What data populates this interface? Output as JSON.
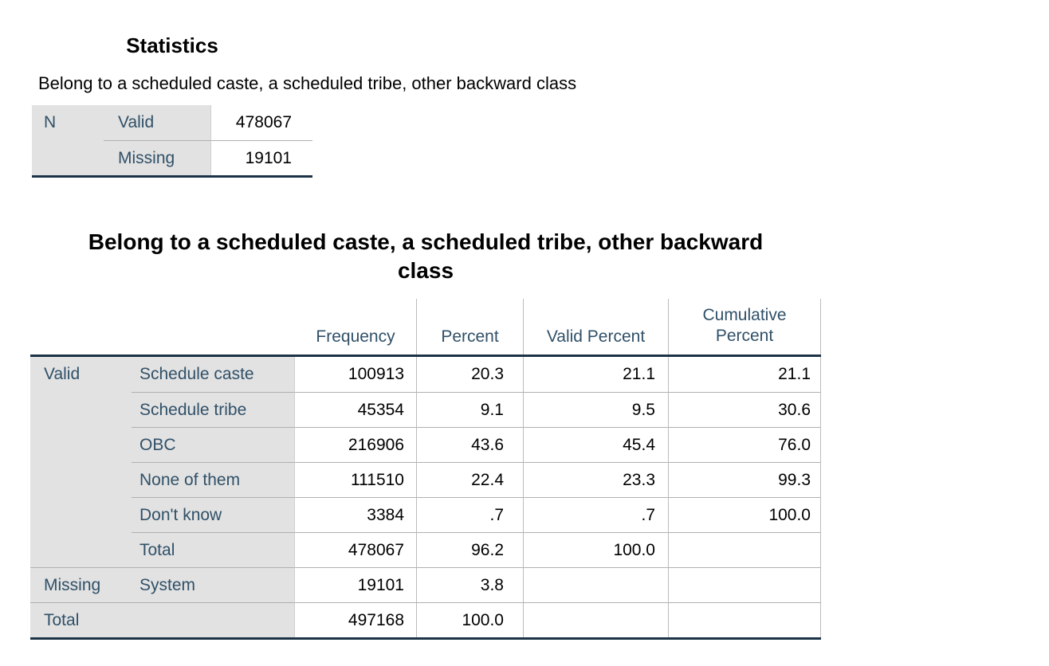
{
  "statistics_block": {
    "title": "Statistics",
    "subtitle": "Belong to a scheduled caste, a scheduled tribe, other backward class",
    "stub_header": "N",
    "rows": [
      {
        "label": "Valid",
        "value": "478067"
      },
      {
        "label": "Missing",
        "value": "19101"
      }
    ]
  },
  "frequency_block": {
    "title": "Belong to a scheduled caste, a scheduled tribe, other backward class",
    "columns": {
      "frequency": "Frequency",
      "percent": "Percent",
      "valid_percent": "Valid Percent",
      "cumulative_percent": "Cumulative Percent"
    },
    "groups": {
      "valid": "Valid",
      "missing": "Missing",
      "total": "Total"
    },
    "rows": [
      {
        "label": "Schedule caste",
        "frequency": "100913",
        "percent": "20.3",
        "valid_percent": "21.1",
        "cumulative_percent": "21.1"
      },
      {
        "label": "Schedule tribe",
        "frequency": "45354",
        "percent": "9.1",
        "valid_percent": "9.5",
        "cumulative_percent": "30.6"
      },
      {
        "label": "OBC",
        "frequency": "216906",
        "percent": "43.6",
        "valid_percent": "45.4",
        "cumulative_percent": "76.0"
      },
      {
        "label": "None of them",
        "frequency": "111510",
        "percent": "22.4",
        "valid_percent": "23.3",
        "cumulative_percent": "99.3"
      },
      {
        "label": "Don't know",
        "frequency": "3384",
        "percent": ".7",
        "valid_percent": ".7",
        "cumulative_percent": "100.0"
      },
      {
        "label": "Total",
        "frequency": "478067",
        "percent": "96.2",
        "valid_percent": "100.0",
        "cumulative_percent": ""
      },
      {
        "label": "System",
        "frequency": "19101",
        "percent": "3.8",
        "valid_percent": "",
        "cumulative_percent": ""
      },
      {
        "label": "",
        "frequency": "497168",
        "percent": "100.0",
        "valid_percent": "",
        "cumulative_percent": ""
      }
    ]
  },
  "colors": {
    "label_text": "#305068",
    "data_text": "#000000",
    "cell_background_gray": "#e2e2e2",
    "grid_line_light": "#b0b0b0",
    "grid_line_heavy": "#1c3246",
    "page_background": "#ffffff"
  }
}
